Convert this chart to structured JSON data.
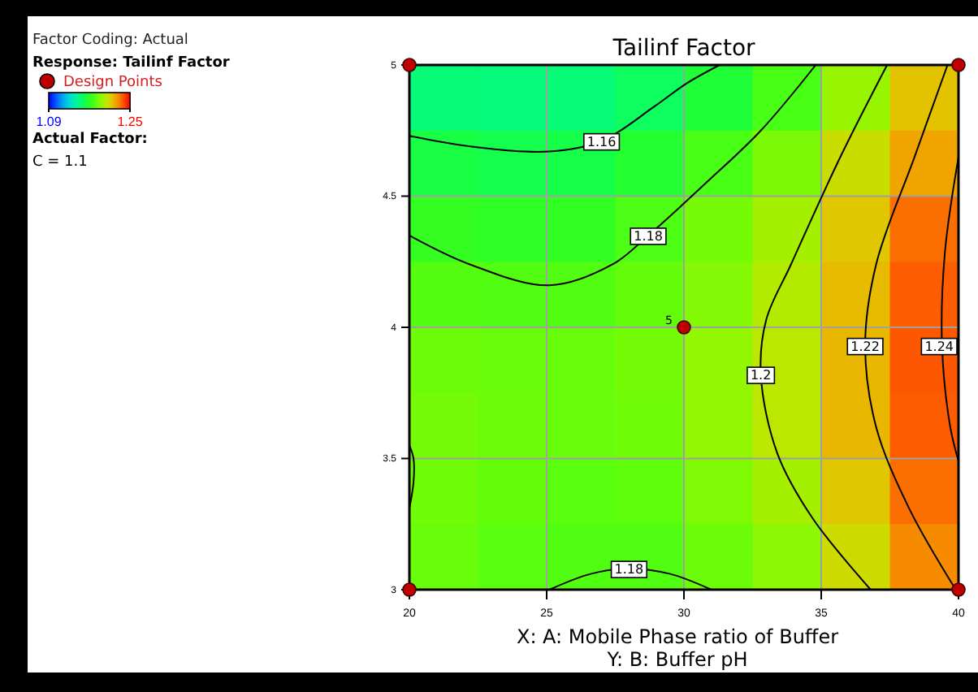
{
  "chart_data": {
    "type": "heatmap",
    "title": "Tailinf Factor",
    "xlabel": "X: A: Mobile Phase ratio of Buffer",
    "clabel": "Response: Tailinf Factor",
    "xlim": [
      20,
      40
    ],
    "xticks": [
      20,
      25,
      30,
      35,
      40
    ],
    "ylim": [
      3,
      5
    ],
    "yticks": [
      3,
      3.5,
      4,
      4.5,
      5
    ],
    "grid": true,
    "legend": "top left",
    "clim": [
      1.09,
      1.25
    ],
    "cticks": [
      1.09,
      1.25
    ],
    "cells": [
      [
        1.152,
        1.151,
        1.152,
        1.157,
        1.166,
        1.178,
        1.195,
        1.215
      ],
      [
        1.163,
        1.161,
        1.162,
        1.168,
        1.178,
        1.189,
        1.207,
        1.222
      ],
      [
        1.173,
        1.171,
        1.172,
        1.179,
        1.188,
        1.198,
        1.214,
        1.232
      ],
      [
        1.181,
        1.18,
        1.18,
        1.184,
        1.191,
        1.201,
        1.217,
        1.235
      ],
      [
        1.186,
        1.185,
        1.185,
        1.188,
        1.194,
        1.203,
        1.218,
        1.236
      ],
      [
        1.188,
        1.186,
        1.185,
        1.187,
        1.194,
        1.203,
        1.218,
        1.235
      ],
      [
        1.187,
        1.184,
        1.182,
        1.183,
        1.19,
        1.198,
        1.214,
        1.232
      ],
      [
        1.185,
        1.182,
        1.18,
        1.18,
        1.186,
        1.193,
        1.208,
        1.227
      ]
    ],
    "series": [
      {
        "type": "line",
        "name": "1.16",
        "color": "#000000",
        "x": [
          20,
          22.2,
          25.1,
          27.0,
          28.9,
          30.1,
          31.3
        ],
        "values": [
          4.73,
          4.69,
          4.67,
          4.71,
          4.84,
          4.93,
          5.0
        ]
      },
      {
        "type": "line",
        "name": "1.18",
        "color": "#000000",
        "x": [
          20,
          22.2,
          25.1,
          27.4,
          28.7,
          30.8,
          32.8,
          34.8
        ],
        "values": [
          4.35,
          4.24,
          4.16,
          4.24,
          4.35,
          4.55,
          4.75,
          5.0
        ]
      },
      {
        "type": "line",
        "name": "1.2",
        "color": "#000000",
        "x": [
          37.4,
          35.7,
          33.9,
          33.0,
          32.8,
          33.4,
          34.7,
          36.8
        ],
        "values": [
          5.0,
          4.65,
          4.24,
          4.03,
          3.82,
          3.52,
          3.27,
          3.0
        ]
      },
      {
        "type": "line",
        "name": "1.22",
        "color": "#000000",
        "x": [
          39.6,
          38.4,
          37.0,
          36.6,
          37.0,
          38.2,
          39.9
        ],
        "values": [
          5.0,
          4.65,
          4.24,
          3.93,
          3.62,
          3.31,
          3.0
        ]
      },
      {
        "type": "line",
        "name": "1.24",
        "color": "#000000",
        "x": [
          40,
          39.5,
          39.4,
          39.7,
          40
        ],
        "values": [
          4.65,
          4.28,
          3.93,
          3.62,
          3.49
        ]
      },
      {
        "type": "line",
        "name": "1.18",
        "color": "#000000",
        "x": [
          25.1,
          26.6,
          28.0,
          29.5,
          31.0
        ],
        "values": [
          3.0,
          3.06,
          3.08,
          3.06,
          3.0
        ]
      },
      {
        "type": "line",
        "color": "#000000",
        "x": [
          20,
          20.15,
          20.15,
          20
        ],
        "values": [
          3.55,
          3.5,
          3.41,
          3.31
        ]
      },
      {
        "type": "scatter",
        "name": "Design Points",
        "color": "#c00000",
        "x": [
          20,
          40,
          30,
          20,
          40
        ],
        "values": [
          5,
          5,
          4,
          3,
          3
        ]
      }
    ],
    "annotations": [
      "Factor Coding: Actual",
      "Actual Factor:",
      "C = 1.1",
      "Y: B: Buffer pH",
      {
        "text": "5",
        "x": 30,
        "y": 4
      }
    ]
  }
}
